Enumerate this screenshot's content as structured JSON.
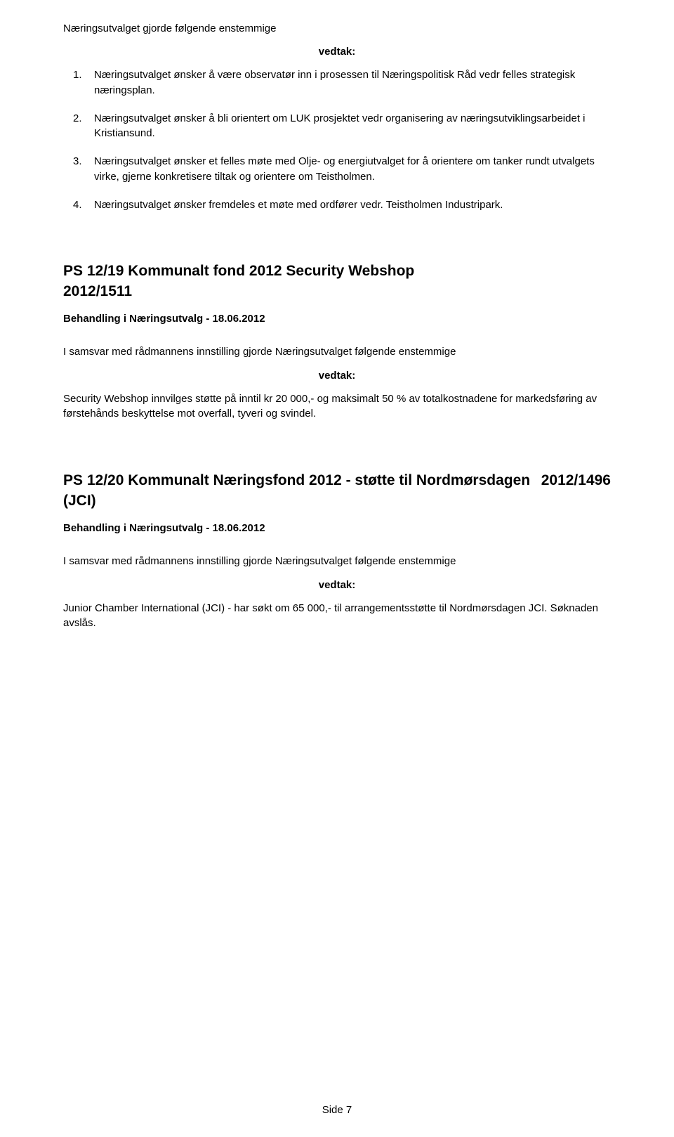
{
  "intro_line": "Næringsutvalget gjorde følgende enstemmige",
  "vedtak_label": "vedtak:",
  "list": [
    {
      "num": "1.",
      "text": "Næringsutvalget ønsker å være observatør inn i prosessen til Næringspolitisk Råd vedr felles strategisk næringsplan."
    },
    {
      "num": "2.",
      "text": "Næringsutvalget ønsker å bli orientert om LUK prosjektet vedr organisering av næringsutviklingsarbeidet i Kristiansund."
    },
    {
      "num": "3.",
      "text": "Næringsutvalget ønsker et felles møte med Olje- og energiutvalget for å orientere om tanker rundt utvalgets virke, gjerne konkretisere tiltak og orientere om Teistholmen."
    },
    {
      "num": "4.",
      "text": "Næringsutvalget ønsker fremdeles et møte med ordfører vedr. Teistholmen Industripark."
    }
  ],
  "section1": {
    "title_line1": "PS 12/19 Kommunalt fond 2012 Security Webshop",
    "title_line2": "2012/1511",
    "behandling": "Behandling i Næringsutvalg - 18.06.2012",
    "body": "I samsvar med rådmannens innstilling gjorde Næringsutvalget følgende enstemmige",
    "decision": "Security Webshop innvilges støtte på inntil kr 20 000,- og maksimalt 50 % av totalkostnadene for markedsføring av førstehånds beskyttelse mot overfall, tyveri og svindel."
  },
  "section2": {
    "title_left": "PS 12/20 Kommunalt Næringsfond 2012 - støtte til Nordmørsdagen (JCI)",
    "title_right": "2012/1496",
    "behandling": "Behandling i Næringsutvalg - 18.06.2012",
    "body": "I samsvar med rådmannens innstilling gjorde Næringsutvalget følgende enstemmige",
    "decision": "Junior Chamber International (JCI) - har søkt om 65 000,- til arrangementsstøtte til Nordmørsdagen JCI.  Søknaden avslås."
  },
  "footer": "Side 7"
}
